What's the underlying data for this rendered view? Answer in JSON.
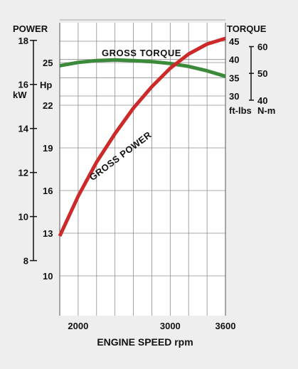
{
  "chart_data": {
    "type": "line",
    "xlabel": "ENGINE SPEED rpm",
    "x_ticks": [
      2000,
      3000,
      3600
    ],
    "xlim": [
      1800,
      3600
    ],
    "grid": true,
    "power_header": "POWER",
    "torque_header": "TORQUE",
    "power_axes": [
      {
        "unit": "kW",
        "ticks": [
          8,
          10,
          12,
          14,
          16,
          18
        ],
        "lim": [
          5.5,
          18.8
        ]
      },
      {
        "unit": "Hp",
        "ticks": [
          10,
          13,
          16,
          19,
          22,
          25
        ],
        "lim": [
          7.2,
          27.8
        ]
      }
    ],
    "torque_axes": [
      {
        "unit": "ft-lbs",
        "ticks": [
          30,
          35,
          40,
          45
        ],
        "lim": [
          30,
          45
        ]
      },
      {
        "unit": "N-m",
        "ticks": [
          40,
          50,
          60
        ],
        "lim": [
          40.5,
          61.2
        ]
      }
    ],
    "series": [
      {
        "name": "GROSS TORQUE",
        "axis": "torque_ft_lbs",
        "color": "#3a8a3a",
        "x": [
          1800,
          2000,
          2200,
          2400,
          2600,
          2800,
          3000,
          3200,
          3400,
          3600
        ],
        "y": [
          38.3,
          39.2,
          39.7,
          39.9,
          39.7,
          39.4,
          38.9,
          38.1,
          36.9,
          35.4
        ]
      },
      {
        "name": "GROSS POWER",
        "axis": "power_hp",
        "color": "#cc2a2a",
        "x": [
          1800,
          2000,
          2200,
          2400,
          2600,
          2800,
          3000,
          3200,
          3400,
          3600
        ],
        "y": [
          12.8,
          15.6,
          18.0,
          20.0,
          21.8,
          23.3,
          24.6,
          25.6,
          26.3,
          26.7
        ]
      }
    ]
  }
}
